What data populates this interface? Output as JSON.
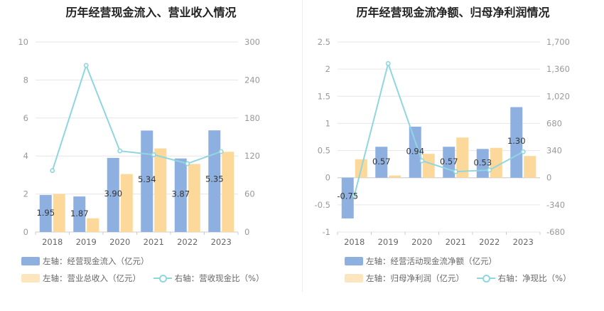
{
  "charts": [
    {
      "title": "历年经营现金流入、营业收入情况",
      "legend": {
        "bar1": "左轴：经营现金流入（亿元）",
        "bar2": "左轴：营业总收入（亿元）",
        "line": "右轴：营收现金比（%）"
      }
    },
    {
      "title": "历年经营现金流净额、归母净利润情况",
      "legend": {
        "bar1": "左轴：经营活动现金流净额（亿元）",
        "bar2": "左轴：归母净利润（亿元）",
        "line": "右轴：净现比（%）"
      }
    }
  ],
  "chart_data": [
    {
      "type": "bar",
      "title": "历年经营现金流入、营业收入情况",
      "categories": [
        "2018",
        "2019",
        "2020",
        "2021",
        "2022",
        "2023"
      ],
      "series": [
        {
          "name": "左轴：经营现金流入（亿元）",
          "axis": "left",
          "type": "bar",
          "color": "#8eb0e0",
          "values": [
            1.95,
            1.87,
            3.9,
            5.34,
            3.87,
            5.35
          ],
          "labels": [
            "1.95",
            "1.87",
            "3.90",
            "5.34",
            "3.87",
            "5.35"
          ]
        },
        {
          "name": "左轴：营业总收入（亿元）",
          "axis": "left",
          "type": "bar",
          "color": "#fcd89a",
          "values": [
            2.0,
            0.72,
            3.05,
            4.4,
            3.58,
            4.22
          ]
        },
        {
          "name": "右轴：营收现金比（%）",
          "axis": "right",
          "type": "line",
          "color": "#8fd6de",
          "values": [
            97,
            263,
            128,
            122,
            108,
            127
          ]
        }
      ],
      "left_axis": {
        "min": 0,
        "max": 10,
        "ticks": [
          "0",
          "2",
          "4",
          "6",
          "8",
          "10"
        ]
      },
      "right_axis": {
        "min": 0,
        "max": 300,
        "ticks": [
          "0",
          "60",
          "120",
          "180",
          "240",
          "300"
        ]
      },
      "grid": true,
      "legend_position": "bottom"
    },
    {
      "type": "bar",
      "title": "历年经营现金流净额、归母净利润情况",
      "categories": [
        "2018",
        "2019",
        "2020",
        "2021",
        "2022",
        "2023"
      ],
      "series": [
        {
          "name": "左轴：经营活动现金流净额（亿元）",
          "axis": "left",
          "type": "bar",
          "color": "#8eb0e0",
          "values": [
            -0.75,
            0.57,
            0.94,
            0.57,
            0.53,
            1.3
          ],
          "labels": [
            "-0.75",
            "0.57",
            "0.94",
            "0.57",
            "0.53",
            "1.30"
          ]
        },
        {
          "name": "左轴：归母净利润（亿元）",
          "axis": "left",
          "type": "bar",
          "color": "#fcd89a",
          "values": [
            0.34,
            0.04,
            0.44,
            0.74,
            0.55,
            0.4
          ]
        },
        {
          "name": "右轴：净现比（%）",
          "axis": "right",
          "type": "line",
          "color": "#8fd6de",
          "values": [
            -220,
            1430,
            213,
            77,
            96,
            325
          ]
        }
      ],
      "left_axis": {
        "min": -1,
        "max": 2.5,
        "ticks": [
          "-1",
          "-0.5",
          "0",
          "0.5",
          "1",
          "1.5",
          "2",
          "2.5"
        ]
      },
      "right_axis": {
        "min": -680,
        "max": 1700,
        "ticks": [
          "-680",
          "-340",
          "0",
          "340",
          "680",
          "1,020",
          "1,360",
          "1,700"
        ]
      },
      "grid": true,
      "legend_position": "bottom"
    }
  ]
}
